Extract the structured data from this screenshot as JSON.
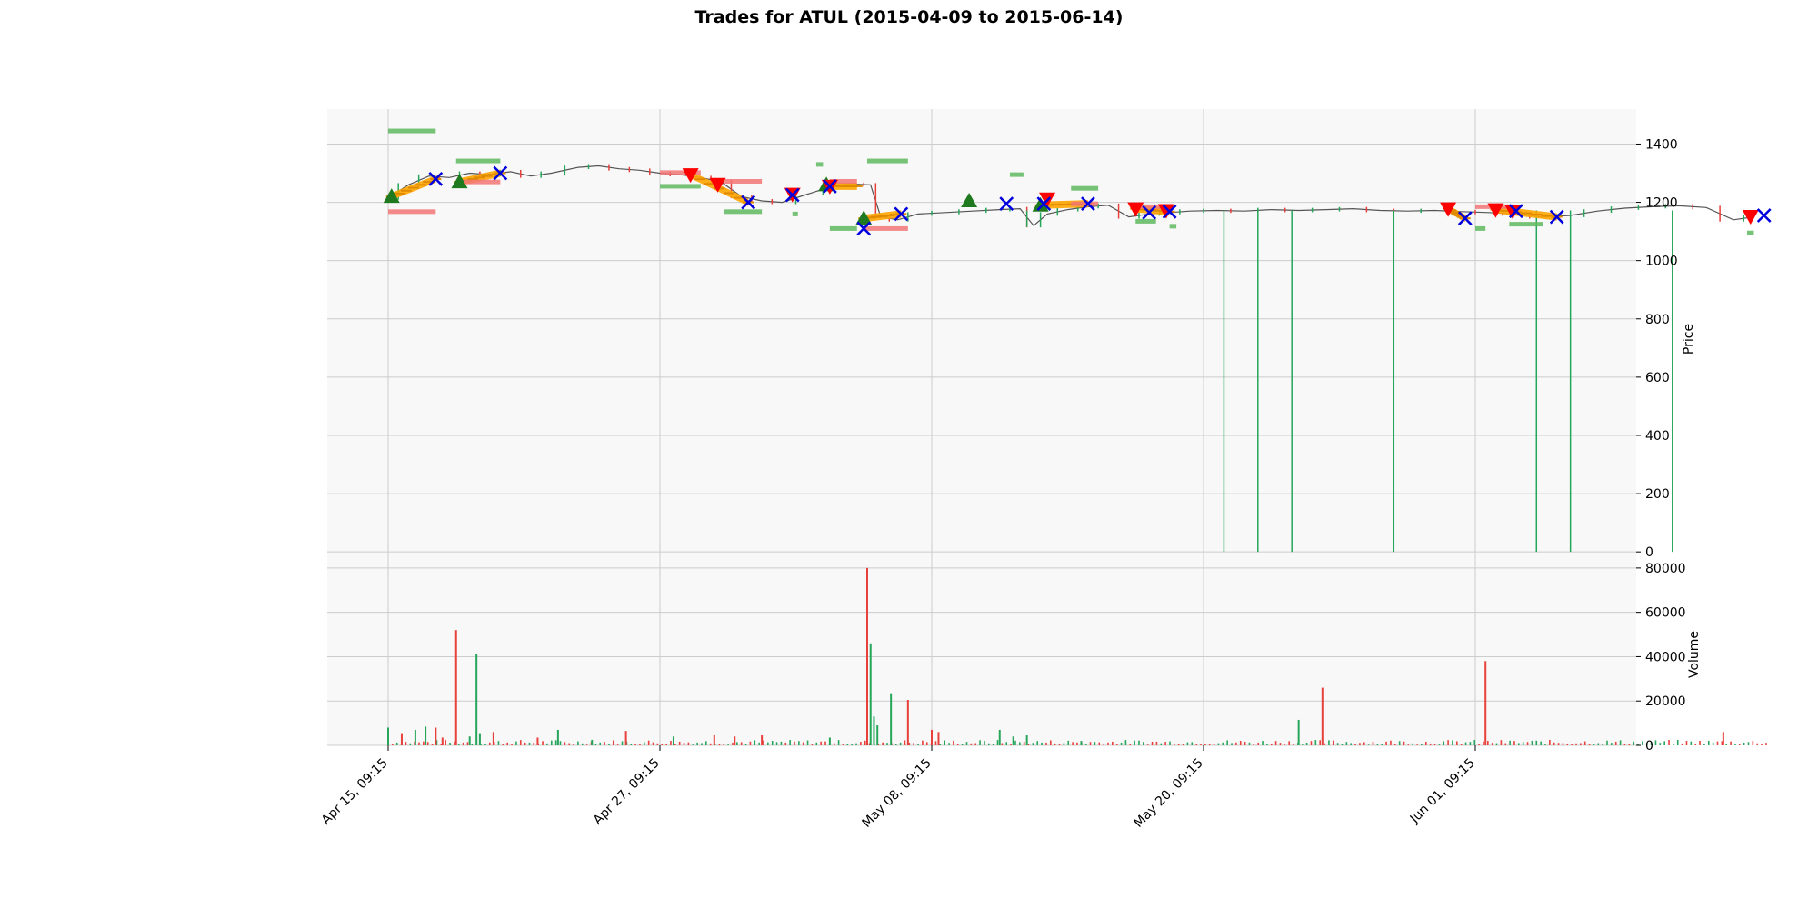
{
  "chart_data": {
    "type": "candlestick",
    "title": "Trades for ATUL (2015-04-09 to 2015-06-14)",
    "x_tick_labels": [
      "Apr 15, 09:15",
      "Apr 27, 09:15",
      "May 08, 09:15",
      "May 20, 09:15",
      "Jun 01, 09:15"
    ],
    "price_panel": {
      "ylabel": "Price",
      "ylim": [
        -40,
        1520
      ],
      "y_ticks": [
        0,
        200,
        400,
        600,
        800,
        1000,
        1200,
        1400
      ],
      "grid": true,
      "price_path": [
        {
          "x": 0.0,
          "y": 1215
        },
        {
          "x": 0.3,
          "y": 1260
        },
        {
          "x": 0.6,
          "y": 1290
        },
        {
          "x": 0.9,
          "y": 1285
        },
        {
          "x": 1.2,
          "y": 1300
        },
        {
          "x": 1.5,
          "y": 1295
        },
        {
          "x": 1.8,
          "y": 1305
        },
        {
          "x": 2.1,
          "y": 1290
        },
        {
          "x": 2.4,
          "y": 1300
        },
        {
          "x": 2.8,
          "y": 1320
        },
        {
          "x": 3.1,
          "y": 1325
        },
        {
          "x": 3.4,
          "y": 1315
        },
        {
          "x": 3.7,
          "y": 1310
        },
        {
          "x": 4.0,
          "y": 1300
        },
        {
          "x": 4.3,
          "y": 1295
        },
        {
          "x": 4.6,
          "y": 1285
        },
        {
          "x": 4.9,
          "y": 1270
        },
        {
          "x": 5.2,
          "y": 1220
        },
        {
          "x": 5.5,
          "y": 1205
        },
        {
          "x": 5.8,
          "y": 1200
        },
        {
          "x": 6.2,
          "y": 1230
        },
        {
          "x": 6.6,
          "y": 1260
        },
        {
          "x": 6.9,
          "y": 1262
        },
        {
          "x": 7.1,
          "y": 1260
        },
        {
          "x": 7.25,
          "y": 1150
        },
        {
          "x": 7.5,
          "y": 1140
        },
        {
          "x": 7.8,
          "y": 1160
        },
        {
          "x": 8.2,
          "y": 1165
        },
        {
          "x": 8.6,
          "y": 1170
        },
        {
          "x": 9.0,
          "y": 1175
        },
        {
          "x": 9.3,
          "y": 1178
        },
        {
          "x": 9.5,
          "y": 1120
        },
        {
          "x": 9.7,
          "y": 1160
        },
        {
          "x": 10.0,
          "y": 1175
        },
        {
          "x": 10.3,
          "y": 1185
        },
        {
          "x": 10.6,
          "y": 1190
        },
        {
          "x": 10.9,
          "y": 1150
        },
        {
          "x": 11.2,
          "y": 1160
        },
        {
          "x": 11.5,
          "y": 1165
        },
        {
          "x": 11.8,
          "y": 1170
        },
        {
          "x": 12.2,
          "y": 1172
        },
        {
          "x": 12.6,
          "y": 1170
        },
        {
          "x": 13.0,
          "y": 1175
        },
        {
          "x": 13.4,
          "y": 1172
        },
        {
          "x": 13.8,
          "y": 1175
        },
        {
          "x": 14.2,
          "y": 1178
        },
        {
          "x": 14.6,
          "y": 1172
        },
        {
          "x": 15.0,
          "y": 1170
        },
        {
          "x": 15.4,
          "y": 1172
        },
        {
          "x": 15.8,
          "y": 1168
        },
        {
          "x": 16.2,
          "y": 1165
        },
        {
          "x": 16.6,
          "y": 1160
        },
        {
          "x": 17.0,
          "y": 1150
        },
        {
          "x": 17.4,
          "y": 1155
        },
        {
          "x": 17.8,
          "y": 1170
        },
        {
          "x": 18.2,
          "y": 1180
        },
        {
          "x": 18.6,
          "y": 1185
        },
        {
          "x": 19.0,
          "y": 1188
        },
        {
          "x": 19.4,
          "y": 1182
        },
        {
          "x": 19.8,
          "y": 1140
        },
        {
          "x": 20.1,
          "y": 1150
        }
      ],
      "price_spikes": [
        {
          "x": 12.3,
          "low": 0
        },
        {
          "x": 12.8,
          "low": 0
        },
        {
          "x": 13.3,
          "low": 0
        },
        {
          "x": 14.8,
          "low": 0
        },
        {
          "x": 16.9,
          "low": 0
        },
        {
          "x": 17.4,
          "low": 0
        },
        {
          "x": 18.9,
          "low": 0
        },
        {
          "x": 9.4,
          "low": 1115
        }
      ],
      "entries_long": [
        {
          "x": 0.05,
          "y": 1220
        },
        {
          "x": 1.05,
          "y": 1270
        },
        {
          "x": 6.45,
          "y": 1260
        },
        {
          "x": 7.0,
          "y": 1145
        },
        {
          "x": 8.55,
          "y": 1205
        },
        {
          "x": 9.6,
          "y": 1190
        }
      ],
      "entries_short": [
        {
          "x": 4.45,
          "y": 1295
        },
        {
          "x": 4.85,
          "y": 1262
        },
        {
          "x": 5.95,
          "y": 1228
        },
        {
          "x": 6.5,
          "y": 1255
        },
        {
          "x": 9.7,
          "y": 1212
        },
        {
          "x": 11.0,
          "y": 1178
        },
        {
          "x": 11.45,
          "y": 1172
        },
        {
          "x": 15.6,
          "y": 1178
        },
        {
          "x": 16.3,
          "y": 1175
        },
        {
          "x": 16.55,
          "y": 1170
        },
        {
          "x": 20.05,
          "y": 1152
        }
      ],
      "exits": [
        {
          "x": 0.7,
          "y": 1280
        },
        {
          "x": 1.65,
          "y": 1300
        },
        {
          "x": 5.3,
          "y": 1200
        },
        {
          "x": 5.95,
          "y": 1225
        },
        {
          "x": 6.5,
          "y": 1255
        },
        {
          "x": 7.0,
          "y": 1110
        },
        {
          "x": 7.55,
          "y": 1160
        },
        {
          "x": 9.1,
          "y": 1195
        },
        {
          "x": 9.65,
          "y": 1195
        },
        {
          "x": 10.3,
          "y": 1195
        },
        {
          "x": 11.2,
          "y": 1165
        },
        {
          "x": 11.5,
          "y": 1168
        },
        {
          "x": 15.85,
          "y": 1145
        },
        {
          "x": 16.6,
          "y": 1170
        },
        {
          "x": 17.2,
          "y": 1150
        },
        {
          "x": 20.25,
          "y": 1155
        }
      ],
      "take_profit_levels": [
        {
          "x0": 0.0,
          "x1": 0.7,
          "y": 1445
        },
        {
          "x0": 1.0,
          "x1": 1.65,
          "y": 1342
        },
        {
          "x0": 4.0,
          "x1": 4.6,
          "y": 1255
        },
        {
          "x0": 4.95,
          "x1": 5.5,
          "y": 1168
        },
        {
          "x0": 5.95,
          "x1": 6.0,
          "y": 1160
        },
        {
          "x0": 6.3,
          "x1": 6.4,
          "y": 1330
        },
        {
          "x0": 6.5,
          "x1": 6.9,
          "y": 1110
        },
        {
          "x0": 7.05,
          "x1": 7.65,
          "y": 1342
        },
        {
          "x0": 9.15,
          "x1": 9.35,
          "y": 1295
        },
        {
          "x0": 10.05,
          "x1": 10.45,
          "y": 1248
        },
        {
          "x0": 11.0,
          "x1": 11.3,
          "y": 1135
        },
        {
          "x0": 11.5,
          "x1": 11.6,
          "y": 1118
        },
        {
          "x0": 16.0,
          "x1": 16.15,
          "y": 1110
        },
        {
          "x0": 16.5,
          "x1": 17.0,
          "y": 1125
        },
        {
          "x0": 20.0,
          "x1": 20.1,
          "y": 1095
        }
      ],
      "stop_loss_levels": [
        {
          "x0": 0.0,
          "x1": 0.7,
          "y": 1168
        },
        {
          "x0": 1.0,
          "x1": 1.65,
          "y": 1270
        },
        {
          "x0": 4.0,
          "x1": 4.6,
          "y": 1302
        },
        {
          "x0": 4.95,
          "x1": 5.5,
          "y": 1272
        },
        {
          "x0": 6.5,
          "x1": 6.9,
          "y": 1272
        },
        {
          "x0": 7.0,
          "x1": 7.65,
          "y": 1110
        },
        {
          "x0": 10.05,
          "x1": 10.45,
          "y": 1195
        },
        {
          "x0": 11.0,
          "x1": 11.5,
          "y": 1185
        },
        {
          "x0": 16.0,
          "x1": 16.6,
          "y": 1185
        }
      ],
      "holding_bands": [
        {
          "x0": 0.05,
          "x1": 0.7,
          "y0": 1220,
          "y1": 1280
        },
        {
          "x0": 1.05,
          "x1": 1.65,
          "y0": 1270,
          "y1": 1300
        },
        {
          "x0": 4.45,
          "x1": 5.3,
          "y0": 1295,
          "y1": 1200
        },
        {
          "x0": 6.5,
          "x1": 6.9,
          "y0": 1255,
          "y1": 1255
        },
        {
          "x0": 7.0,
          "x1": 7.55,
          "y0": 1145,
          "y1": 1160
        },
        {
          "x0": 9.6,
          "x1": 10.3,
          "y0": 1190,
          "y1": 1195
        },
        {
          "x0": 11.0,
          "x1": 11.5,
          "y0": 1178,
          "y1": 1168
        },
        {
          "x0": 15.6,
          "x1": 15.85,
          "y0": 1178,
          "y1": 1145
        },
        {
          "x0": 16.3,
          "x1": 17.2,
          "y0": 1175,
          "y1": 1150
        }
      ]
    },
    "volume_panel": {
      "ylabel": "Volume",
      "ylim": [
        0,
        82000
      ],
      "y_ticks": [
        0,
        20000,
        40000,
        60000,
        80000
      ],
      "grid": true,
      "spikes": [
        {
          "x": 0.0,
          "v": 8000,
          "c": "g"
        },
        {
          "x": 0.2,
          "v": 5500,
          "c": "r"
        },
        {
          "x": 0.4,
          "v": 7000,
          "c": "g"
        },
        {
          "x": 0.55,
          "v": 8500,
          "c": "g"
        },
        {
          "x": 0.7,
          "v": 8000,
          "c": "r"
        },
        {
          "x": 0.8,
          "v": 3500,
          "c": "r"
        },
        {
          "x": 1.0,
          "v": 52000,
          "c": "r"
        },
        {
          "x": 1.2,
          "v": 4000,
          "c": "g"
        },
        {
          "x": 1.3,
          "v": 41000,
          "c": "g"
        },
        {
          "x": 1.35,
          "v": 5500,
          "c": "g"
        },
        {
          "x": 1.55,
          "v": 6000,
          "c": "r"
        },
        {
          "x": 2.2,
          "v": 3500,
          "c": "r"
        },
        {
          "x": 2.5,
          "v": 7000,
          "c": "g"
        },
        {
          "x": 3.0,
          "v": 2500,
          "c": "g"
        },
        {
          "x": 3.5,
          "v": 6500,
          "c": "r"
        },
        {
          "x": 4.2,
          "v": 4000,
          "c": "g"
        },
        {
          "x": 4.8,
          "v": 4500,
          "c": "r"
        },
        {
          "x": 5.1,
          "v": 4000,
          "c": "r"
        },
        {
          "x": 5.5,
          "v": 4500,
          "c": "r"
        },
        {
          "x": 6.5,
          "v": 3500,
          "c": "g"
        },
        {
          "x": 7.05,
          "v": 80000,
          "c": "r"
        },
        {
          "x": 7.1,
          "v": 46000,
          "c": "g"
        },
        {
          "x": 7.15,
          "v": 13000,
          "c": "g"
        },
        {
          "x": 7.2,
          "v": 9000,
          "c": "g"
        },
        {
          "x": 7.4,
          "v": 23500,
          "c": "g"
        },
        {
          "x": 7.65,
          "v": 20500,
          "c": "r"
        },
        {
          "x": 8.0,
          "v": 7000,
          "c": "r"
        },
        {
          "x": 8.1,
          "v": 6000,
          "c": "r"
        },
        {
          "x": 9.0,
          "v": 7000,
          "c": "g"
        },
        {
          "x": 9.2,
          "v": 4000,
          "c": "g"
        },
        {
          "x": 9.4,
          "v": 4500,
          "c": "g"
        },
        {
          "x": 10.2,
          "v": 2000,
          "c": "g"
        },
        {
          "x": 13.4,
          "v": 11500,
          "c": "g"
        },
        {
          "x": 13.75,
          "v": 26000,
          "c": "r"
        },
        {
          "x": 16.15,
          "v": 38000,
          "c": "r"
        },
        {
          "x": 19.65,
          "v": 6000,
          "c": "r"
        }
      ]
    },
    "colors": {
      "up": "#26a65b",
      "down": "#e8403a",
      "entry_long": "#1f7a1f",
      "entry_short": "#ff0000",
      "exit": "#0000dd",
      "holding": "#ffa500",
      "take_profit": "#5fb85f",
      "stop_loss": "#f27575",
      "panel_bg": "#f8f8f8",
      "grid": "#cccccc"
    }
  }
}
